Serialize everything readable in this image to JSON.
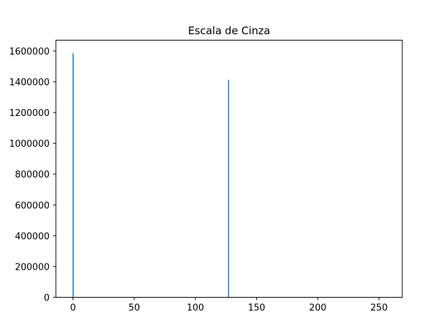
{
  "chart_data": {
    "type": "bar",
    "title": "Escala de Cinza",
    "xlabel": "",
    "ylabel": "",
    "xlim": [
      -14,
      269
    ],
    "ylim": [
      0,
      1670000
    ],
    "x": [
      0,
      127
    ],
    "values": [
      1585000,
      1412000
    ],
    "xticks": [
      0,
      50,
      100,
      150,
      200,
      250
    ],
    "yticks": [
      0,
      200000,
      400000,
      600000,
      800000,
      1000000,
      1200000,
      1400000,
      1600000
    ],
    "grid": false,
    "legend": "none",
    "bar_color": "#1f77b4"
  }
}
